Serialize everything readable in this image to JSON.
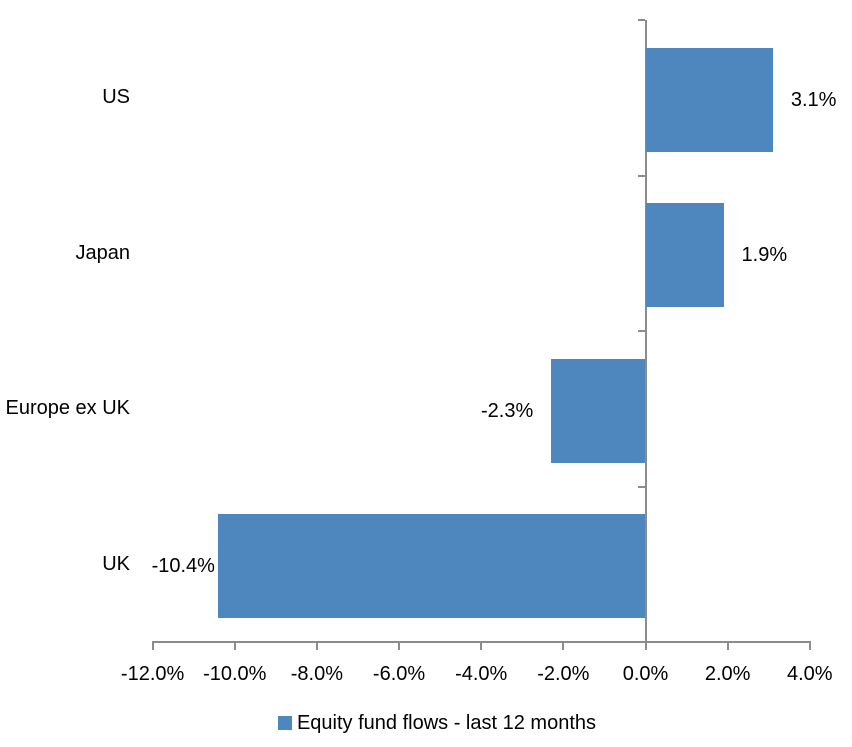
{
  "chart_data": {
    "type": "bar",
    "orientation": "horizontal",
    "title": "",
    "xlabel": "",
    "ylabel": "",
    "categories": [
      "US",
      "Japan",
      "Europe ex UK",
      "UK"
    ],
    "series": [
      {
        "name": "Equity fund flows - last 12 months",
        "values": [
          3.1,
          1.9,
          -2.3,
          -10.4
        ],
        "labels": [
          "3.1%",
          "1.9%",
          "-2.3%",
          "-10.4%"
        ],
        "color": "#4E86BE"
      }
    ],
    "xlim": [
      -12,
      4
    ],
    "x_ticks": [
      -12,
      -10,
      -8,
      -6,
      -4,
      -2,
      0,
      2,
      4
    ],
    "x_tick_labels": [
      "-12.0%",
      "-10.0%",
      "-8.0%",
      "-6.0%",
      "-4.0%",
      "-2.0%",
      "0.0%",
      "2.0%",
      "4.0%"
    ],
    "grid": false,
    "legend_position": "bottom",
    "data_label_position": "outside-end",
    "axis_color": "#8C8C8C",
    "text_color": "#000000",
    "background": "#FFFFFF"
  }
}
